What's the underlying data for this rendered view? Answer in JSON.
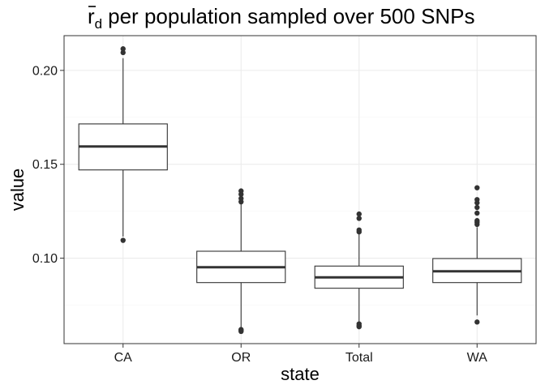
{
  "chart_data": {
    "type": "boxplot",
    "title": {
      "symbol": "r",
      "subscript": "d",
      "rest": "per population sampled over 500 SNPs"
    },
    "xlabel": "state",
    "ylabel": "value",
    "ylim": [
      0.0545,
      0.2185
    ],
    "yticks": [
      {
        "value": 0.1,
        "label": "0.10"
      },
      {
        "value": 0.15,
        "label": "0.15"
      },
      {
        "value": 0.2,
        "label": "0.20"
      }
    ],
    "yminor": [
      0.075,
      0.125,
      0.175
    ],
    "grid": true,
    "categories": [
      "CA",
      "OR",
      "Total",
      "WA"
    ],
    "boxes": [
      {
        "category": "CA",
        "whisker_low": 0.1115,
        "q1": 0.147,
        "median": 0.1595,
        "q3": 0.1715,
        "whisker_high": 0.2065,
        "outliers": [
          0.2095,
          0.2115,
          0.1095
        ]
      },
      {
        "category": "OR",
        "whisker_low": 0.0625,
        "q1": 0.087,
        "median": 0.0952,
        "q3": 0.1037,
        "whisker_high": 0.129,
        "outliers": [
          0.13,
          0.1318,
          0.134,
          0.1358,
          0.062,
          0.0615,
          0.061
        ]
      },
      {
        "category": "Total",
        "whisker_low": 0.066,
        "q1": 0.084,
        "median": 0.0898,
        "q3": 0.0958,
        "whisker_high": 0.113,
        "outliers": [
          0.114,
          0.115,
          0.1212,
          0.1235,
          0.065,
          0.064,
          0.0635
        ]
      },
      {
        "category": "WA",
        "whisker_low": 0.0695,
        "q1": 0.087,
        "median": 0.093,
        "q3": 0.0998,
        "whisker_high": 0.1165,
        "outliers": [
          0.118,
          0.119,
          0.12,
          0.124,
          0.127,
          0.1295,
          0.1312,
          0.1375,
          0.066
        ]
      }
    ],
    "colors": {
      "box_fill": "#ffffff",
      "box_stroke": "#333333",
      "median": "#333333",
      "outlier": "#333333",
      "grid_major": "#ebebeb",
      "grid_minor": "#f5f5f5",
      "panel_border": "#333333"
    }
  }
}
